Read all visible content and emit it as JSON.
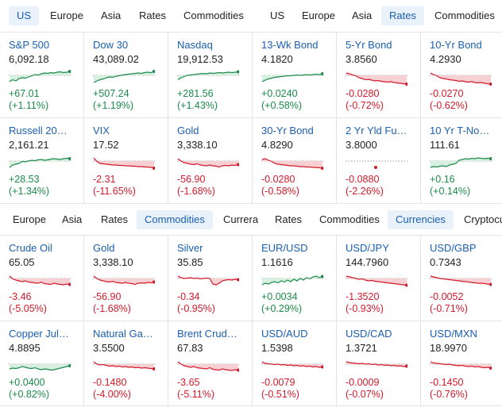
{
  "tabbars": [
    {
      "tabs": [
        {
          "label": "US",
          "active": true
        },
        {
          "label": "Europe",
          "active": false
        },
        {
          "label": "Asia",
          "active": false
        },
        {
          "label": "Rates",
          "active": false
        },
        {
          "label": "Commodities",
          "active": false
        },
        {
          "label": "US",
          "active": false
        },
        {
          "label": "Europe",
          "active": false
        },
        {
          "label": "Asia",
          "active": false
        },
        {
          "label": "Rates",
          "active": true
        },
        {
          "label": "Commodities",
          "active": false
        }
      ]
    },
    {
      "tabs": [
        {
          "label": "Europe",
          "active": false
        },
        {
          "label": "Asia",
          "active": false
        },
        {
          "label": "Rates",
          "active": false
        },
        {
          "label": "Commodities",
          "active": true
        },
        {
          "label": "Currera",
          "active": false
        },
        {
          "label": "Rates",
          "active": false
        },
        {
          "label": "Commodities",
          "active": false
        },
        {
          "label": "Currencies",
          "active": true
        },
        {
          "label": "Cryptocu",
          "active": false
        }
      ]
    }
  ],
  "colors": {
    "up": "#1b8a4a",
    "down": "#d11a2a",
    "up_fill": "#d7efdf",
    "down_fill": "#f7d0d4",
    "link": "#1a5fb0"
  },
  "cards": [
    {
      "name": "S&P 500",
      "price": "6,092.18",
      "change": "+67.01",
      "pct": "(+1.11%)",
      "dir": "up",
      "spark": [
        40,
        45,
        42,
        48,
        50,
        49,
        52,
        55,
        58,
        57,
        60,
        62,
        61,
        63,
        62,
        64,
        65,
        63,
        64,
        66
      ]
    },
    {
      "name": "Dow 30",
      "price": "43,089.02",
      "change": "+507.24",
      "pct": "(+1.19%)",
      "dir": "up",
      "spark": [
        38,
        42,
        45,
        47,
        50,
        52,
        51,
        54,
        55,
        57,
        58,
        59,
        60,
        61,
        62,
        61,
        63,
        64,
        63,
        66
      ]
    },
    {
      "name": "Nasdaq",
      "price": "19,912.53",
      "change": "+281.56",
      "pct": "(+1.43%)",
      "dir": "up",
      "spark": [
        45,
        50,
        53,
        56,
        57,
        58,
        59,
        60,
        61,
        60,
        62,
        61,
        62,
        63,
        62,
        63,
        64,
        63,
        64,
        65
      ]
    },
    {
      "name": "13-Wk Bond",
      "price": "4.1820",
      "change": "+0.0240",
      "pct": "(+0.58%)",
      "dir": "up",
      "spark": [
        40,
        44,
        47,
        49,
        51,
        52,
        53,
        54,
        55,
        55,
        56,
        57,
        56,
        57,
        58,
        57,
        58,
        59,
        58,
        60
      ]
    },
    {
      "name": "5-Yr Bond",
      "price": "3.8560",
      "change": "-0.0280",
      "pct": "(-0.72%)",
      "dir": "down",
      "spark": [
        62,
        60,
        57,
        55,
        50,
        48,
        45,
        46,
        44,
        42,
        43,
        41,
        40,
        39,
        40,
        38,
        37,
        36,
        35,
        34
      ]
    },
    {
      "name": "10-Yr Bond",
      "price": "4.2930",
      "change": "-0.0270",
      "pct": "(-0.62%)",
      "dir": "down",
      "spark": [
        62,
        58,
        55,
        50,
        48,
        47,
        45,
        44,
        43,
        41,
        42,
        40,
        39,
        40,
        38,
        37,
        38,
        36,
        35,
        34
      ]
    },
    {
      "name": "Russell 20…",
      "price": "2,161.21",
      "change": "+28.53",
      "pct": "(+1.34%)",
      "dir": "up",
      "spark": [
        40,
        46,
        48,
        50,
        55,
        54,
        56,
        58,
        57,
        59,
        60,
        58,
        59,
        61,
        62,
        61,
        60,
        62,
        63,
        62
      ]
    },
    {
      "name": "VIX",
      "price": "17.52",
      "change": "-2.31",
      "pct": "(-11.65%)",
      "dir": "down",
      "spark": [
        64,
        55,
        50,
        49,
        48,
        47,
        46,
        46,
        45,
        45,
        44,
        44,
        43,
        43,
        42,
        42,
        41,
        41,
        40,
        38
      ]
    },
    {
      "name": "Gold",
      "price": "3,338.10",
      "change": "-56.90",
      "pct": "(-1.68%)",
      "dir": "down",
      "spark": [
        62,
        56,
        52,
        50,
        48,
        47,
        49,
        46,
        45,
        44,
        46,
        44,
        43,
        41,
        44,
        45,
        44,
        46,
        45,
        47
      ]
    },
    {
      "name": "30-Yr Bond",
      "price": "4.8290",
      "change": "-0.0280",
      "pct": "(-0.58%)",
      "dir": "down",
      "spark": [
        60,
        62,
        58,
        55,
        50,
        48,
        47,
        46,
        45,
        44,
        44,
        43,
        42,
        42,
        41,
        41,
        40,
        40,
        39,
        38
      ]
    },
    {
      "name": "2 Yr Yld Fu…",
      "price": "3.8000",
      "change": "-0.0880",
      "pct": "(-2.26%)",
      "dir": "down",
      "spark": [],
      "dot": true
    },
    {
      "name": "10 Yr T-No…",
      "price": "111.61",
      "change": "+0.16",
      "pct": "(+0.14%)",
      "dir": "up",
      "spark": [
        40,
        42,
        41,
        43,
        44,
        42,
        46,
        48,
        50,
        58,
        60,
        62,
        61,
        63,
        62,
        64,
        63,
        62,
        63,
        62
      ]
    },
    {
      "name": "Crude Oil",
      "price": "65.05",
      "change": "-3.46",
      "pct": "(-5.05%)",
      "dir": "down",
      "spark": [
        62,
        55,
        52,
        50,
        48,
        50,
        47,
        46,
        45,
        44,
        47,
        43,
        42,
        41,
        44,
        42,
        41,
        40,
        42,
        41
      ]
    },
    {
      "name": "Gold",
      "price": "3,338.10",
      "change": "-56.90",
      "pct": "(-1.68%)",
      "dir": "down",
      "spark": [
        62,
        56,
        52,
        50,
        48,
        47,
        49,
        46,
        45,
        44,
        46,
        44,
        43,
        41,
        44,
        45,
        44,
        46,
        45,
        47
      ]
    },
    {
      "name": "Silver",
      "price": "35.85",
      "change": "-0.34",
      "pct": "(-0.95%)",
      "dir": "down",
      "spark": [
        62,
        58,
        56,
        57,
        58,
        56,
        57,
        55,
        56,
        57,
        56,
        42,
        40,
        44,
        50,
        52,
        53,
        52,
        54,
        53
      ]
    },
    {
      "name": "EUR/USD",
      "price": "1.1616",
      "change": "+0.0034",
      "pct": "(+0.29%)",
      "dir": "up",
      "spark": [
        40,
        44,
        42,
        46,
        48,
        45,
        50,
        47,
        52,
        48,
        54,
        50,
        56,
        52,
        58,
        55,
        60,
        62,
        58,
        61
      ]
    },
    {
      "name": "USD/JPY",
      "price": "144.7960",
      "change": "-1.3520",
      "pct": "(-0.93%)",
      "dir": "down",
      "spark": [
        62,
        60,
        58,
        56,
        54,
        55,
        52,
        50,
        51,
        49,
        48,
        47,
        46,
        45,
        44,
        43,
        42,
        41,
        40,
        39
      ]
    },
    {
      "name": "USD/GBP",
      "price": "0.7343",
      "change": "-0.0052",
      "pct": "(-0.71%)",
      "dir": "down",
      "spark": [
        62,
        60,
        58,
        56,
        55,
        54,
        53,
        52,
        51,
        50,
        49,
        48,
        47,
        46,
        45,
        44,
        44,
        43,
        42,
        41
      ]
    },
    {
      "name": "Copper Jul…",
      "price": "4.8895",
      "change": "+0.0400",
      "pct": "(+0.82%)",
      "dir": "up",
      "spark": [
        44,
        46,
        45,
        47,
        50,
        48,
        46,
        45,
        47,
        44,
        42,
        44,
        43,
        41,
        42,
        44,
        46,
        48,
        50,
        52
      ]
    },
    {
      "name": "Natural Ga…",
      "price": "3.5500",
      "change": "-0.1480",
      "pct": "(-4.00%)",
      "dir": "down",
      "spark": [
        62,
        56,
        54,
        55,
        53,
        51,
        52,
        50,
        51,
        49,
        50,
        48,
        49,
        47,
        48,
        46,
        47,
        46,
        45,
        44
      ]
    },
    {
      "name": "Brent Crud…",
      "price": "67.83",
      "change": "-3.65",
      "pct": "(-5.11%)",
      "dir": "down",
      "spark": [
        62,
        56,
        52,
        50,
        48,
        50,
        47,
        46,
        45,
        44,
        47,
        43,
        42,
        41,
        44,
        42,
        41,
        40,
        42,
        41
      ]
    },
    {
      "name": "USD/AUD",
      "price": "1.5398",
      "change": "-0.0079",
      "pct": "(-0.51%)",
      "dir": "down",
      "spark": [
        62,
        58,
        57,
        56,
        55,
        56,
        54,
        55,
        53,
        54,
        52,
        53,
        51,
        52,
        50,
        51,
        49,
        50,
        48,
        49
      ]
    },
    {
      "name": "USD/CAD",
      "price": "1.3721",
      "change": "-0.0009",
      "pct": "(-0.07%)",
      "dir": "down",
      "spark": [
        62,
        60,
        59,
        58,
        57,
        58,
        56,
        57,
        55,
        56,
        54,
        55,
        53,
        54,
        52,
        53,
        51,
        52,
        50,
        51
      ]
    },
    {
      "name": "USD/MXN",
      "price": "18.9970",
      "change": "-0.1450",
      "pct": "(-0.76%)",
      "dir": "down",
      "spark": [
        62,
        59,
        58,
        57,
        56,
        55,
        56,
        54,
        53,
        52,
        53,
        51,
        50,
        51,
        49,
        50,
        48,
        47,
        48,
        46
      ]
    }
  ]
}
